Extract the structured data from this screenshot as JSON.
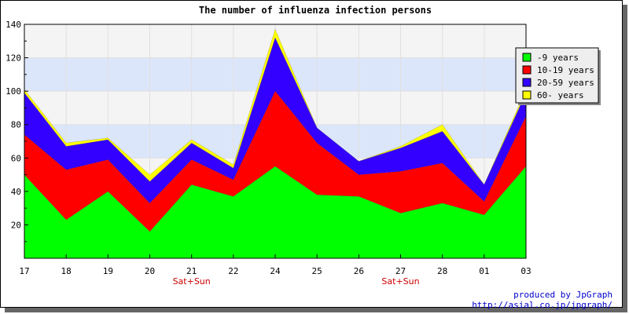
{
  "chart_data": {
    "type": "area",
    "stacked": true,
    "title": "The number of influenza infection persons",
    "xlabel": "",
    "ylabel": "",
    "categories": [
      "17",
      "18",
      "19",
      "20",
      "21",
      "22",
      "24",
      "25",
      "26",
      "27",
      "28",
      "01",
      "03"
    ],
    "weekend_labels": [
      {
        "category": "21",
        "text": "Sat+Sun"
      },
      {
        "category": "27",
        "text": "Sat+Sun"
      }
    ],
    "ylim": [
      0,
      140
    ],
    "yticks": [
      20,
      40,
      60,
      80,
      100,
      120,
      140
    ],
    "grid": true,
    "bands": [
      {
        "from": 60,
        "to": 80,
        "color": "#dce6fb"
      },
      {
        "from": 100,
        "to": 120,
        "color": "#dce6fb"
      }
    ],
    "legend_position": "right",
    "series": [
      {
        "name": "-9 years",
        "color": "#00ff00",
        "values": [
          50,
          23,
          40,
          16,
          44,
          37,
          55,
          38,
          37,
          27,
          33,
          26,
          55
        ]
      },
      {
        "name": "10-19 years",
        "color": "#ff0000",
        "values": [
          24,
          30,
          19,
          17,
          15,
          10,
          45,
          31,
          13,
          25,
          24,
          8,
          30
        ]
      },
      {
        "name": "20-59 years",
        "color": "#3300ff",
        "values": [
          25,
          14,
          12,
          13,
          10,
          7,
          32,
          9,
          8,
          14,
          19,
          10,
          14
        ]
      },
      {
        "name": "60- years",
        "color": "#ffff00",
        "values": [
          2,
          2,
          1,
          4,
          2,
          2,
          5,
          0,
          0,
          1,
          4,
          0,
          2
        ]
      }
    ]
  },
  "credits": {
    "line1": "produced by JpGraph",
    "line2": "http://asial.co.jp/jpgraph/"
  }
}
